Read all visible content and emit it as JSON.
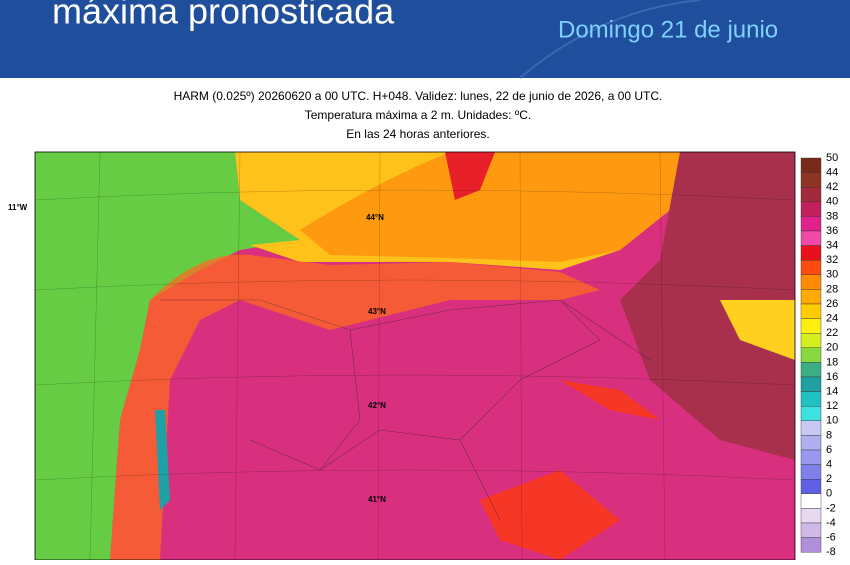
{
  "header": {
    "title": "máxima pronosticada",
    "date": "Domingo 21 de junio"
  },
  "map": {
    "caption": [
      "HARM (0.025º) 20260620 a 00 UTC. H+048. Validez: lunes, 22 de junio de 2026, a 00 UTC.",
      "Temperatura máxima a 2 m. Unidades: ºC.",
      "En las 24 horas anteriores."
    ],
    "labels": [
      "44°N",
      "43°N",
      "42°N",
      "41°N",
      "11°W"
    ]
  },
  "legend": {
    "ticks": [
      50,
      44,
      42,
      40,
      38,
      36,
      34,
      32,
      30,
      28,
      26,
      24,
      22,
      20,
      18,
      16,
      14,
      12,
      10,
      8,
      6,
      4,
      2,
      0,
      -2,
      -4,
      -6,
      -8
    ],
    "colors": [
      "#7a2a1a",
      "#8e3424",
      "#a32a3c",
      "#c2205c",
      "#e0228a",
      "#f04aa6",
      "#e8101a",
      "#ff4c10",
      "#ff8a00",
      "#ffaa00",
      "#ffcc00",
      "#ffee10",
      "#d4ee20",
      "#8ad840",
      "#3cae86",
      "#1ea0a4",
      "#20c0c4",
      "#3ee0e0",
      "#c8c8f2",
      "#b0b0f0",
      "#9898ee",
      "#8080ea",
      "#6060e4",
      "#ffffff",
      "#e8d8f0",
      "#d0b8e8",
      "#b090dc"
    ]
  }
}
